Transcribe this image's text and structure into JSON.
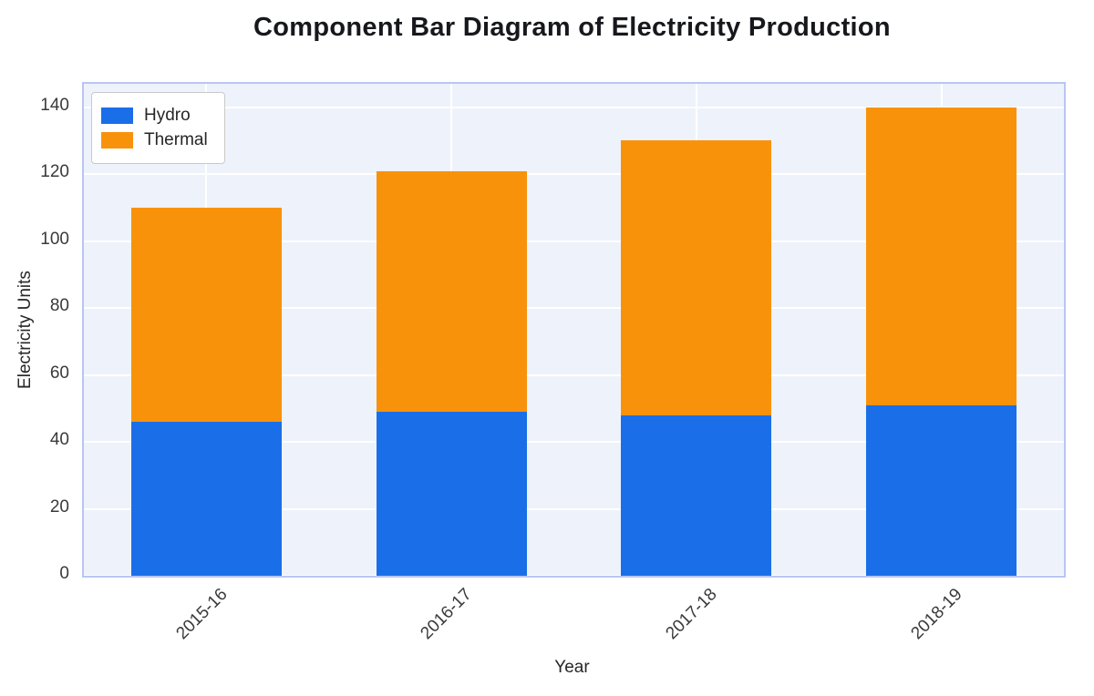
{
  "chart_data": {
    "type": "bar",
    "stacked": true,
    "title": "Component Bar Diagram of Electricity Production",
    "xlabel": "Year",
    "ylabel": "Electricity Units",
    "categories": [
      "2015-16",
      "2016-17",
      "2017-18",
      "2018-19"
    ],
    "series": [
      {
        "name": "Hydro",
        "color": "#1a6fe8",
        "values": [
          46,
          49,
          48,
          51
        ]
      },
      {
        "name": "Thermal",
        "color": "#f9920b",
        "values": [
          64,
          72,
          82,
          89
        ]
      }
    ],
    "totals": [
      110,
      121,
      130,
      140
    ],
    "ylim": [
      0,
      140
    ],
    "yticks": [
      0,
      20,
      40,
      60,
      80,
      100,
      120,
      140
    ],
    "grid": true,
    "legend_position": "upper left",
    "colors": {
      "plot_background": "#eef2fb",
      "plot_border": "#b9c6f2",
      "grid_line": "#ffffff",
      "tick_text": "#3a3a3a",
      "title_text": "#17181c"
    }
  }
}
